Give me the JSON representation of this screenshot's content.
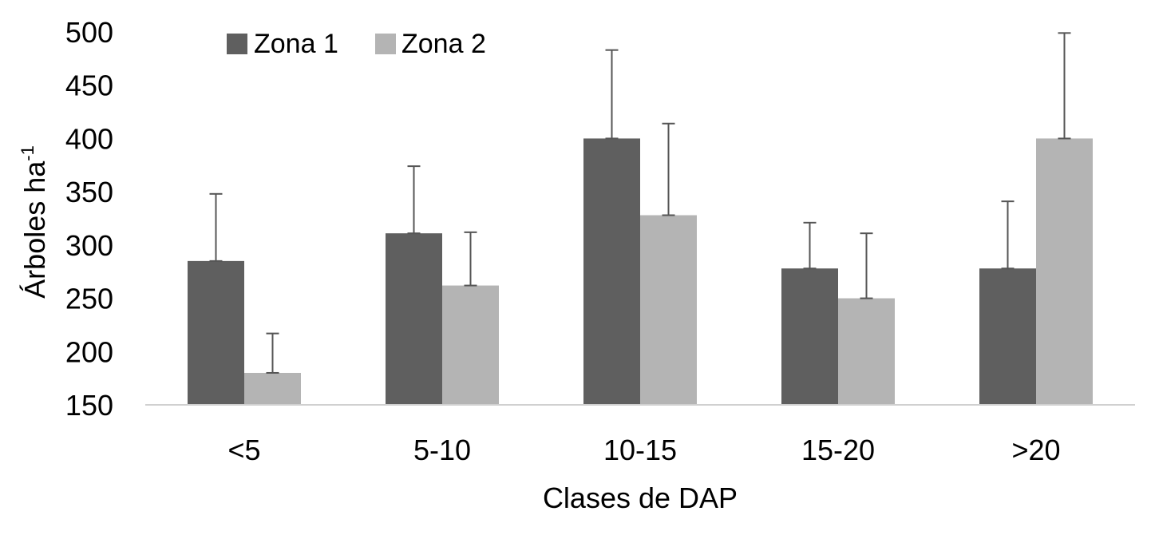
{
  "chart_data": {
    "type": "bar",
    "title": "",
    "xlabel": "Clases de DAP",
    "ylabel": "Árboles ha",
    "ylabel_superscript": "-1",
    "categories": [
      "<5",
      "5-10",
      "10-15",
      "15-20",
      ">20"
    ],
    "series": [
      {
        "name": "Zona 1",
        "color": "#5f5f5f",
        "values": [
          285,
          311,
          400,
          278,
          278
        ],
        "error_plus": [
          63,
          63,
          83,
          43,
          63
        ]
      },
      {
        "name": "Zona 2",
        "color": "#b4b4b4",
        "values": [
          180,
          262,
          328,
          250,
          400
        ],
        "error_plus": [
          37,
          50,
          86,
          61,
          99
        ]
      }
    ],
    "ylim": [
      150,
      500
    ],
    "yticks": [
      "150",
      "200",
      "250",
      "300",
      "350",
      "400",
      "450",
      "500"
    ],
    "grid": false,
    "legend_position": "top-left"
  }
}
